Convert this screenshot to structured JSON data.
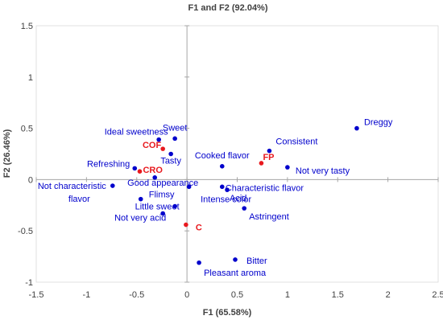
{
  "chart_data": {
    "type": "scatter",
    "title": "F1 and F2 (92.04%)",
    "xlabel": "F1 (65.58%)",
    "ylabel": "F2 (26.46%)",
    "xlim": [
      -1.5,
      2.5
    ],
    "ylim": [
      -1,
      1.5
    ],
    "x_ticks": [
      "-1.5",
      "-1",
      "-0.5",
      "0",
      "0.5",
      "1",
      "1.5",
      "2",
      "2.5"
    ],
    "y_ticks": [
      "-1",
      "-0.5",
      "0",
      "0.5",
      "1",
      "1.5"
    ],
    "grid": false,
    "colors": {
      "variables": "#0000CC",
      "observations": "#E8191E",
      "axes": "#A6A6A6",
      "text": "#404040"
    },
    "series": [
      {
        "group": "variables",
        "points": [
          {
            "label": "Dreggy",
            "x": 1.69,
            "y": 0.5
          },
          {
            "label": "Consistent",
            "x": 0.82,
            "y": 0.28
          },
          {
            "label": "Not very tasty",
            "x": 1.0,
            "y": 0.12
          },
          {
            "label": "Cooked flavor",
            "x": 0.35,
            "y": 0.13
          },
          {
            "label": "Sweet",
            "x": -0.12,
            "y": 0.4
          },
          {
            "label": "Ideal sweetness",
            "x": -0.28,
            "y": 0.39
          },
          {
            "label": "Tasty",
            "x": -0.16,
            "y": 0.25
          },
          {
            "label": "Refreshing",
            "x": -0.52,
            "y": 0.11
          },
          {
            "label": "Good appearance",
            "x": -0.32,
            "y": 0.02
          },
          {
            "label": "Not characteristic flavor",
            "x": -0.74,
            "y": -0.06
          },
          {
            "label": "Flimsy",
            "x": -0.46,
            "y": -0.19
          },
          {
            "label": "Little sweet",
            "x": -0.12,
            "y": -0.26
          },
          {
            "label": "Not very acid",
            "x": -0.24,
            "y": -0.33
          },
          {
            "label": "Characteristic flavor",
            "x": 0.35,
            "y": -0.07
          },
          {
            "label": "Intense color",
            "x": 0.02,
            "y": -0.07
          },
          {
            "label": "Acid",
            "x": 0.4,
            "y": -0.1
          },
          {
            "label": "Astringent",
            "x": 0.57,
            "y": -0.28
          },
          {
            "label": "Bitter",
            "x": 0.48,
            "y": -0.78
          },
          {
            "label": "Pleasant aroma",
            "x": 0.12,
            "y": -0.81
          }
        ]
      },
      {
        "group": "observations",
        "points": [
          {
            "label": "COF",
            "x": -0.24,
            "y": 0.3
          },
          {
            "label": "CRO",
            "x": -0.47,
            "y": 0.08
          },
          {
            "label": "FP",
            "x": 0.74,
            "y": 0.16
          },
          {
            "label": "C",
            "x": -0.01,
            "y": -0.44
          }
        ]
      }
    ]
  }
}
